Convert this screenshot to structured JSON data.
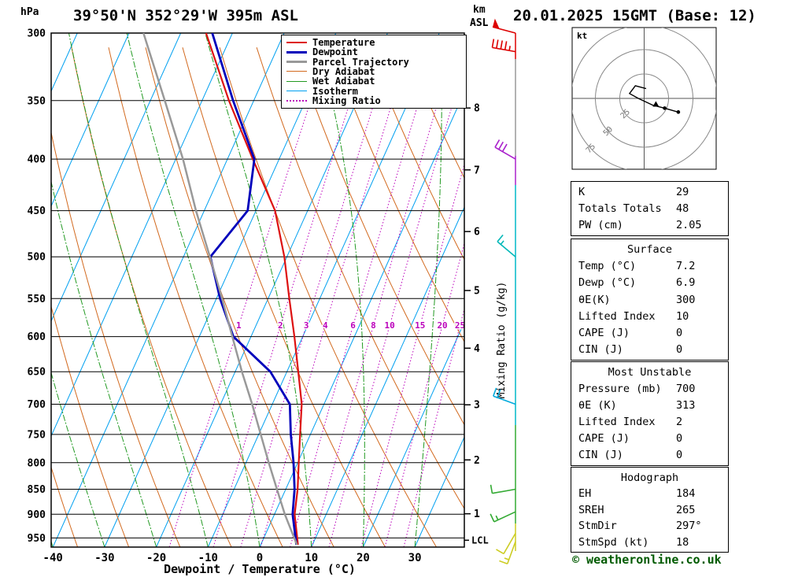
{
  "header": {
    "pressure_unit": "hPa",
    "title": "39°50'N 352°29'W 395m ASL",
    "altitude_unit_line1": "km",
    "altitude_unit_line2": "ASL",
    "datetime": "20.01.2025 15GMT (Base: 12)"
  },
  "legend": {
    "items": [
      {
        "label": "Temperature",
        "color": "#dd1111",
        "width": 2.5,
        "dash": false
      },
      {
        "label": "Dewpoint",
        "color": "#0000bb",
        "width": 3,
        "dash": false
      },
      {
        "label": "Parcel Trajectory",
        "color": "#999999",
        "width": 3,
        "dash": false
      },
      {
        "label": "Dry Adiabat",
        "color": "#d2691e",
        "width": 1.5,
        "dash": false
      },
      {
        "label": "Wet Adiabat",
        "color": "#229922",
        "width": 1.5,
        "dash": false
      },
      {
        "label": "Isotherm",
        "color": "#00a0f0",
        "width": 1.5,
        "dash": false
      },
      {
        "label": "Mixing Ratio",
        "color": "#bb00bb",
        "width": 2,
        "dash": true
      }
    ]
  },
  "axes": {
    "xlabel": "Dewpoint / Temperature (°C)",
    "right_axis_label": "Mixing Ratio (g/kg)",
    "pressure_ticks": [
      300,
      350,
      400,
      450,
      500,
      550,
      600,
      650,
      700,
      750,
      800,
      850,
      900,
      950
    ],
    "temp_ticks": [
      -40,
      -30,
      -20,
      -10,
      0,
      10,
      20,
      30
    ],
    "km_ticks": [
      {
        "km": 8,
        "p": 356
      },
      {
        "km": 7,
        "p": 410
      },
      {
        "km": 6,
        "p": 472
      },
      {
        "km": 5,
        "p": 540
      },
      {
        "km": 4,
        "p": 616
      },
      {
        "km": 3,
        "p": 701
      },
      {
        "km": 2,
        "p": 795
      },
      {
        "km": 1,
        "p": 899
      }
    ],
    "lcl": {
      "label": "LCL",
      "p": 955
    },
    "mixing_ratio_values": [
      1,
      2,
      3,
      4,
      6,
      8,
      10,
      15,
      20,
      25
    ]
  },
  "chart_data": {
    "type": "line",
    "title": "Skew-T log-P sounding 39°50'N 352°29'W 395m ASL 20.01.2025 15GMT",
    "x_axis": {
      "label": "Dewpoint / Temperature (°C)",
      "min": -40,
      "max": 40
    },
    "y_axis": {
      "label": "hPa",
      "min": 300,
      "max": 970,
      "scale": "log"
    },
    "series": [
      {
        "name": "Temperature",
        "color": "#dd1111",
        "width": 2.2,
        "points": [
          [
            965,
            7.2
          ],
          [
            900,
            3.9
          ],
          [
            850,
            2.3
          ],
          [
            800,
            0.2
          ],
          [
            750,
            -2.0
          ],
          [
            700,
            -4.3
          ],
          [
            650,
            -7.8
          ],
          [
            600,
            -11.6
          ],
          [
            550,
            -15.9
          ],
          [
            500,
            -20.5
          ],
          [
            450,
            -26.3
          ],
          [
            400,
            -35.1
          ],
          [
            350,
            -44.8
          ],
          [
            300,
            -55.1
          ]
        ]
      },
      {
        "name": "Dewpoint",
        "color": "#0000bb",
        "width": 2.8,
        "points": [
          [
            965,
            6.9
          ],
          [
            900,
            3.5
          ],
          [
            850,
            1.7
          ],
          [
            800,
            -0.8
          ],
          [
            750,
            -3.8
          ],
          [
            700,
            -6.6
          ],
          [
            650,
            -13.2
          ],
          [
            600,
            -23.4
          ],
          [
            550,
            -29.3
          ],
          [
            500,
            -34.8
          ],
          [
            450,
            -31.6
          ],
          [
            400,
            -34.8
          ],
          [
            350,
            -44.0
          ],
          [
            300,
            -53.9
          ]
        ]
      },
      {
        "name": "Parcel Trajectory",
        "color": "#999999",
        "width": 2.5,
        "points": [
          [
            965,
            7.0
          ],
          [
            900,
            2.0
          ],
          [
            850,
            -1.7
          ],
          [
            800,
            -5.6
          ],
          [
            750,
            -9.6
          ],
          [
            700,
            -13.9
          ],
          [
            650,
            -18.7
          ],
          [
            600,
            -23.6
          ],
          [
            550,
            -28.9
          ],
          [
            500,
            -34.9
          ],
          [
            450,
            -41.6
          ],
          [
            400,
            -48.6
          ],
          [
            350,
            -57.2
          ],
          [
            300,
            -67.2
          ]
        ]
      }
    ]
  },
  "wind_barbs": [
    {
      "p": 300,
      "speed_kt": 50,
      "dir_deg": 285,
      "color": "#dd0000"
    },
    {
      "p": 313,
      "speed_kt": 45,
      "dir_deg": 280,
      "color": "#dd0000"
    },
    {
      "p": 400,
      "speed_kt": 30,
      "dir_deg": 300,
      "color": "#aa22cc"
    },
    {
      "p": 500,
      "speed_kt": 15,
      "dir_deg": 310,
      "color": "#00b8b8"
    },
    {
      "p": 700,
      "speed_kt": 20,
      "dir_deg": 290,
      "color": "#00aadd"
    },
    {
      "p": 850,
      "speed_kt": 10,
      "dir_deg": 260,
      "color": "#33aa33"
    },
    {
      "p": 895,
      "speed_kt": 15,
      "dir_deg": 245,
      "color": "#33aa33"
    },
    {
      "p": 940,
      "speed_kt": 10,
      "dir_deg": 210,
      "color": "#cccc22"
    },
    {
      "p": 958,
      "speed_kt": 15,
      "dir_deg": 200,
      "color": "#cccc22"
    }
  ],
  "hodograph": {
    "unit_label": "kt",
    "rings_kt": [
      25,
      50,
      75
    ],
    "ring_labels": [
      "25",
      "50",
      "75"
    ],
    "trace_uv_kt": [
      [
        2,
        10
      ],
      [
        -9,
        13
      ],
      [
        -15,
        5
      ],
      [
        -6,
        0
      ],
      [
        9,
        -7
      ],
      [
        21,
        -10
      ],
      [
        35,
        -14
      ]
    ],
    "markers": [
      {
        "u": 12,
        "v": -6,
        "type": "triangle"
      },
      {
        "u": 21,
        "v": -10,
        "type": "dot"
      },
      {
        "u": 35,
        "v": -14,
        "type": "dot"
      }
    ]
  },
  "tables": {
    "panels": [
      {
        "rows": [
          [
            "K",
            "29"
          ],
          [
            "Totals Totals",
            "48"
          ],
          [
            "PW (cm)",
            "2.05"
          ]
        ]
      },
      {
        "header": "Surface",
        "rows": [
          [
            "Temp (°C)",
            "7.2"
          ],
          [
            "Dewp (°C)",
            "6.9"
          ],
          [
            "θE(K)",
            "300"
          ],
          [
            "Lifted Index",
            "10"
          ],
          [
            "CAPE (J)",
            "0"
          ],
          [
            "CIN (J)",
            "0"
          ]
        ]
      },
      {
        "header": "Most Unstable",
        "rows": [
          [
            "Pressure (mb)",
            "700"
          ],
          [
            "θE (K)",
            "313"
          ],
          [
            "Lifted Index",
            "2"
          ],
          [
            "CAPE (J)",
            "0"
          ],
          [
            "CIN (J)",
            "0"
          ]
        ]
      },
      {
        "header": "Hodograph",
        "rows": [
          [
            "EH",
            "184"
          ],
          [
            "SREH",
            "265"
          ],
          [
            "StmDir",
            "297°"
          ],
          [
            "StmSpd (kt)",
            "18"
          ]
        ]
      }
    ]
  },
  "footer": {
    "copyright": "© weatheronline.co.uk"
  }
}
